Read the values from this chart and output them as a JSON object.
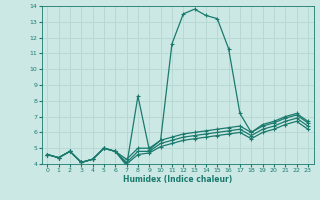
{
  "xlabel": "Humidex (Indice chaleur)",
  "ylabel": "",
  "background_color": "#cce8e4",
  "grid_color": "#b8d8d4",
  "line_color": "#1a7a6e",
  "xlim": [
    -0.5,
    23.5
  ],
  "ylim": [
    4,
    14
  ],
  "xticks": [
    0,
    1,
    2,
    3,
    4,
    5,
    6,
    7,
    8,
    9,
    10,
    11,
    12,
    13,
    14,
    15,
    16,
    17,
    18,
    19,
    20,
    21,
    22,
    23
  ],
  "yticks": [
    4,
    5,
    6,
    7,
    8,
    9,
    10,
    11,
    12,
    13,
    14
  ],
  "lines": [
    {
      "x": [
        0,
        1,
        2,
        3,
        4,
        5,
        6,
        7,
        8,
        9,
        10,
        11,
        12,
        13,
        14,
        15,
        16,
        17,
        18,
        19,
        20,
        21,
        22,
        23
      ],
      "y": [
        4.6,
        4.4,
        4.8,
        4.1,
        4.3,
        5.0,
        4.8,
        3.9,
        8.3,
        4.9,
        5.5,
        11.6,
        13.5,
        13.8,
        13.4,
        13.2,
        11.3,
        7.2,
        6.0,
        6.5,
        6.7,
        7.0,
        7.2,
        6.7
      ]
    },
    {
      "x": [
        0,
        1,
        2,
        3,
        4,
        5,
        6,
        7,
        8,
        9,
        10,
        11,
        12,
        13,
        14,
        15,
        16,
        17,
        18,
        19,
        20,
        21,
        22,
        23
      ],
      "y": [
        4.6,
        4.4,
        4.8,
        4.1,
        4.3,
        5.0,
        4.8,
        4.3,
        5.0,
        5.0,
        5.5,
        5.7,
        5.9,
        6.0,
        6.1,
        6.2,
        6.3,
        6.4,
        6.0,
        6.4,
        6.6,
        6.9,
        7.1,
        6.6
      ]
    },
    {
      "x": [
        0,
        1,
        2,
        3,
        4,
        5,
        6,
        7,
        8,
        9,
        10,
        11,
        12,
        13,
        14,
        15,
        16,
        17,
        18,
        19,
        20,
        21,
        22,
        23
      ],
      "y": [
        4.6,
        4.4,
        4.8,
        4.1,
        4.3,
        5.0,
        4.8,
        4.1,
        4.8,
        4.8,
        5.3,
        5.5,
        5.7,
        5.8,
        5.9,
        6.0,
        6.1,
        6.2,
        5.8,
        6.2,
        6.4,
        6.7,
        6.9,
        6.4
      ]
    },
    {
      "x": [
        0,
        1,
        2,
        3,
        4,
        5,
        6,
        7,
        8,
        9,
        10,
        11,
        12,
        13,
        14,
        15,
        16,
        17,
        18,
        19,
        20,
        21,
        22,
        23
      ],
      "y": [
        4.6,
        4.4,
        4.8,
        4.1,
        4.3,
        5.0,
        4.8,
        4.0,
        4.6,
        4.7,
        5.1,
        5.3,
        5.5,
        5.6,
        5.7,
        5.8,
        5.9,
        6.0,
        5.6,
        6.0,
        6.2,
        6.5,
        6.7,
        6.2
      ]
    }
  ],
  "marker": "+",
  "markersize": 3,
  "linewidth": 0.9
}
